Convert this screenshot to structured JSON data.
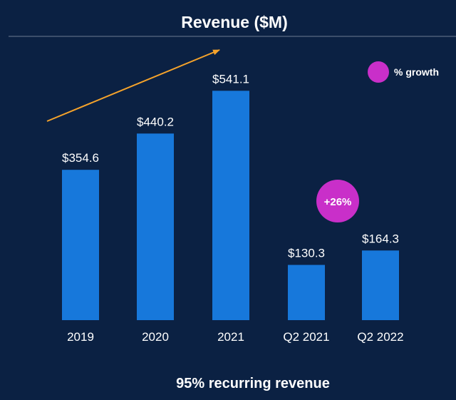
{
  "chart_data": {
    "type": "bar",
    "title": "Revenue ($M)",
    "categories": [
      "2019",
      "2020",
      "2021",
      "Q2 2021",
      "Q2 2022"
    ],
    "values": [
      354.6,
      440.2,
      541.1,
      130.3,
      164.3
    ],
    "data_labels": [
      "$354.6",
      "$440.2",
      "$541.1",
      "$130.3",
      "$164.3"
    ],
    "xlabel": "",
    "ylabel": "",
    "ylim": [
      0,
      600
    ],
    "grid": false,
    "legend": [
      {
        "label": "% growth",
        "color": "#c92fc9"
      }
    ],
    "annotations": [
      {
        "text": "+26%",
        "between": [
          "Q2 2021",
          "Q2 2022"
        ]
      }
    ],
    "footer": "95% recurring revenue"
  },
  "colors": {
    "background": "#0b2143",
    "bar": "#1778db",
    "growth": "#c92fc9",
    "arrow": "#f5a32b",
    "divider": "#6d7b92"
  }
}
